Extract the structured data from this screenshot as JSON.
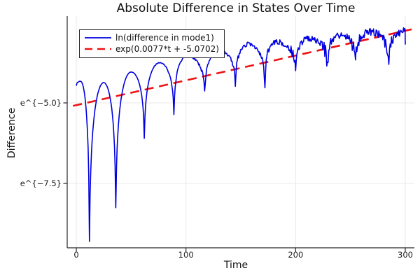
{
  "chart_data": {
    "type": "line",
    "title": "Absolute Difference in States Over Time",
    "xlabel": "Time",
    "ylabel": "Difference",
    "xlim": [
      -8,
      308
    ],
    "ylim_ln": [
      -9.5,
      -2.3
    ],
    "xticks": [
      0,
      100,
      200,
      300
    ],
    "xtick_labels": [
      "0",
      "100",
      "200",
      "300"
    ],
    "yticks": [
      {
        "ln": -5.0,
        "label": "e^{−5.0}"
      },
      {
        "ln": -7.5,
        "label": "e^{−7.5}"
      }
    ],
    "grid": true,
    "legend_position": "top-left",
    "axis_color": "#26262d",
    "grid_color": "#e9e9e9",
    "series": [
      {
        "name": "ln(difference in mode1)",
        "color": "#0000e0",
        "style": "solid",
        "anchors": [
          [
            0,
            -4.47,
            "d"
          ],
          [
            4,
            -4.33,
            "p"
          ],
          [
            12,
            -9.3,
            "d"
          ],
          [
            25,
            -4.37,
            "p"
          ],
          [
            36,
            -8.25,
            "d"
          ],
          [
            50,
            -4.04,
            "p"
          ],
          [
            62,
            -6.1,
            "d"
          ],
          [
            76,
            -3.76,
            "p"
          ],
          [
            89,
            -5.35,
            "d"
          ],
          [
            101,
            -3.54,
            "p"
          ],
          [
            117,
            -4.74,
            "d"
          ],
          [
            130,
            -3.37,
            "p"
          ],
          [
            145,
            -4.37,
            "d"
          ],
          [
            157,
            -3.17,
            "p"
          ],
          [
            172,
            -4.35,
            "d"
          ],
          [
            182,
            -3.11,
            "p"
          ],
          [
            200,
            -3.98,
            "d"
          ],
          [
            212,
            -3.0,
            "p"
          ],
          [
            229,
            -3.83,
            "d"
          ],
          [
            241,
            -2.89,
            "p"
          ],
          [
            254,
            -3.7,
            "d"
          ],
          [
            268,
            -2.8,
            "p"
          ],
          [
            285,
            -3.65,
            "d"
          ],
          [
            299,
            -2.78,
            "p"
          ],
          [
            300,
            -2.9,
            "d"
          ]
        ],
        "noise": {
          "seed": 20177,
          "base_amp": 0.1,
          "onset_t": 70,
          "ramp_t": 170,
          "dip_boost": 1.6
        }
      },
      {
        "name": "exp(0.0077*t + -5.0702)",
        "color": "#ee1111",
        "style": "dashed",
        "slope": 0.0077,
        "intercept": -5.0702,
        "t_range": [
          -3,
          306
        ]
      }
    ]
  }
}
